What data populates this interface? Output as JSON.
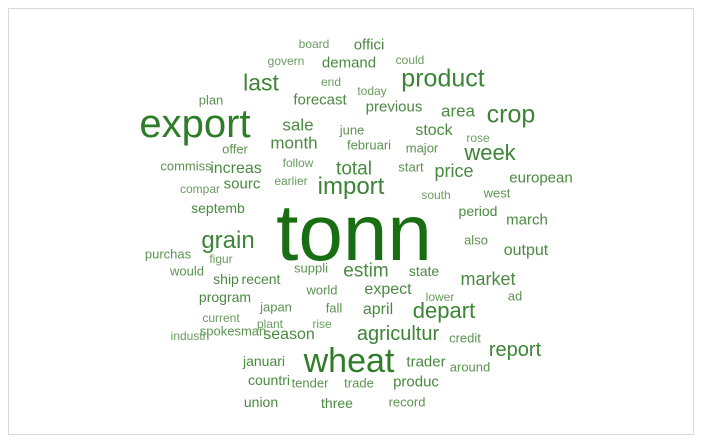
{
  "wordcloud": {
    "words": [
      "tonn",
      "export",
      "wheat",
      "product",
      "crop",
      "import",
      "grain",
      "last",
      "week",
      "depart",
      "agricultur",
      "report",
      "estim",
      "total",
      "market",
      "price",
      "area",
      "month",
      "sale",
      "stock",
      "season",
      "expect",
      "april",
      "output",
      "march",
      "european",
      "trader",
      "produc",
      "increas",
      "sourc",
      "forecast",
      "previous",
      "demand",
      "offici",
      "septemb",
      "state",
      "program",
      "recent",
      "ship",
      "countri",
      "januari",
      "union",
      "three",
      "period",
      "plan",
      "june",
      "februari",
      "major",
      "start",
      "offer",
      "commiss",
      "also",
      "purchas",
      "would",
      "suppli",
      "world",
      "ad",
      "japan",
      "fall",
      "credit",
      "around",
      "tender",
      "trade",
      "record",
      "west",
      "spokesman",
      "board",
      "govern",
      "could",
      "end",
      "today",
      "rose",
      "follow",
      "earlier",
      "compar",
      "south",
      "figur",
      "lower",
      "current",
      "plant",
      "rise",
      "industri"
    ]
  }
}
